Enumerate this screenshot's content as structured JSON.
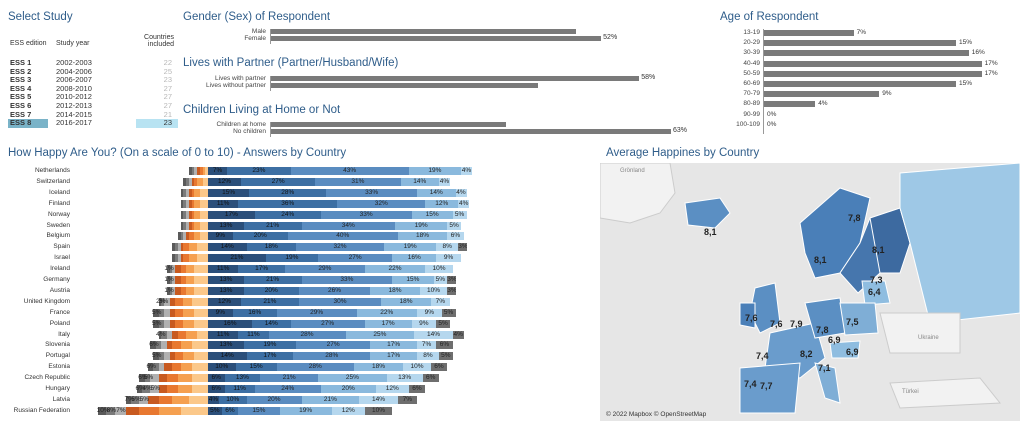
{
  "select_study": {
    "title": "Select Study",
    "headers": {
      "edition": "ESS edition",
      "year": "Study year",
      "countries": "Countries included"
    },
    "rows": [
      {
        "edition": "ESS 1",
        "year": "2002-2003",
        "countries": "22",
        "selected": false
      },
      {
        "edition": "ESS 2",
        "year": "2004-2006",
        "countries": "25",
        "selected": false
      },
      {
        "edition": "ESS 3",
        "year": "2006-2007",
        "countries": "23",
        "selected": false
      },
      {
        "edition": "ESS 4",
        "year": "2008-2010",
        "countries": "27",
        "selected": false
      },
      {
        "edition": "ESS 5",
        "year": "2010-2012",
        "countries": "27",
        "selected": false
      },
      {
        "edition": "ESS 6",
        "year": "2012-2013",
        "countries": "27",
        "selected": false
      },
      {
        "edition": "ESS 7",
        "year": "2014-2015",
        "countries": "21",
        "selected": false
      },
      {
        "edition": "ESS 8",
        "year": "2016-2017",
        "countries": "23",
        "selected": true
      }
    ]
  },
  "gender": {
    "title": "Gender (Sex) of Respondent",
    "rows": [
      {
        "label": "Male",
        "value": 48,
        "shown": ""
      },
      {
        "label": "Female",
        "value": 52,
        "shown": "52%"
      }
    ]
  },
  "partner": {
    "title": "Lives with Partner (Partner/Husband/Wife)",
    "rows": [
      {
        "label": "Lives with partner",
        "value": 58,
        "shown": "58%"
      },
      {
        "label": "Lives without partner",
        "value": 42,
        "shown": ""
      }
    ]
  },
  "children": {
    "title": "Children Living at Home or Not",
    "rows": [
      {
        "label": "Children at home",
        "value": 37,
        "shown": ""
      },
      {
        "label": "No children",
        "value": 63,
        "shown": "63%"
      }
    ]
  },
  "age": {
    "title": "Age of Respondent",
    "rows": [
      {
        "label": "13-19",
        "value": 7,
        "shown": "7%"
      },
      {
        "label": "20-29",
        "value": 15,
        "shown": "15%"
      },
      {
        "label": "30-39",
        "value": 16,
        "shown": "16%"
      },
      {
        "label": "40-49",
        "value": 17,
        "shown": "17%"
      },
      {
        "label": "50-59",
        "value": 17,
        "shown": "17%"
      },
      {
        "label": "60-69",
        "value": 15,
        "shown": "15%"
      },
      {
        "label": "70-79",
        "value": 9,
        "shown": "9%"
      },
      {
        "label": "80-89",
        "value": 4,
        "shown": "4%"
      },
      {
        "label": "90-99",
        "value": 0,
        "shown": "0%"
      },
      {
        "label": "100-109",
        "value": 0,
        "shown": "0%"
      }
    ]
  },
  "chart_data": {
    "type": "bar",
    "title": "How Happy Are You? (On a scale of 0 to 10) - Answers by Country",
    "colors": {
      "neg": [
        "#5a5a5a",
        "#808080",
        "#a8a8a8",
        "#c54a1e",
        "#e06020",
        "#f0883a",
        "#f7a960",
        "#fbc58a"
      ],
      "mid": "#e8a060",
      "pos": [
        "#2b4f7a",
        "#3d6fa3",
        "#5a8cc0",
        "#8ab9dd",
        "#b5d7ee",
        "#7a7a7a"
      ]
    },
    "rows": [
      {
        "country": "Netherlands",
        "left": [
          1,
          1,
          1,
          1,
          1,
          1,
          1
        ],
        "right": [
          7,
          23,
          43,
          19,
          4
        ],
        "labels": [
          "7%",
          "23%",
          "43%",
          "19%",
          "4%"
        ]
      },
      {
        "country": "Switzerland",
        "left": [
          1,
          1,
          1,
          1,
          1,
          2,
          2
        ],
        "right": [
          12,
          27,
          31,
          14,
          4
        ],
        "labels": [
          "12%",
          "27%",
          "31%",
          "14%",
          "4%"
        ]
      },
      {
        "country": "Iceland",
        "left": [
          1,
          1,
          1,
          1,
          1,
          2,
          3
        ],
        "right": [
          15,
          28,
          33,
          14,
          4
        ],
        "labels": [
          "15%",
          "28%",
          "33%",
          "14%",
          "4%"
        ]
      },
      {
        "country": "Finland",
        "left": [
          1,
          1,
          1,
          1,
          1,
          2,
          3
        ],
        "right": [
          11,
          36,
          32,
          12,
          4
        ],
        "labels": [
          "11%",
          "36%",
          "32%",
          "12%",
          "4%"
        ]
      },
      {
        "country": "Norway",
        "left": [
          1,
          1,
          1,
          1,
          1,
          2,
          3
        ],
        "right": [
          17,
          24,
          33,
          15,
          5
        ],
        "labels": [
          "17%",
          "24%",
          "33%",
          "15%",
          "5%"
        ]
      },
      {
        "country": "Sweden",
        "left": [
          1,
          1,
          1,
          1,
          1,
          2,
          3
        ],
        "right": [
          13,
          21,
          34,
          19,
          5
        ],
        "labels": [
          "13%",
          "21%",
          "34%",
          "19%",
          "5%"
        ]
      },
      {
        "country": "Belgium",
        "left": [
          1,
          1,
          1,
          1,
          2,
          2,
          3
        ],
        "right": [
          9,
          20,
          40,
          18,
          6
        ],
        "labels": [
          "9%",
          "20%",
          "40%",
          "18%",
          "6%"
        ]
      },
      {
        "country": "Spain",
        "left": [
          1,
          1,
          1,
          1,
          2,
          3,
          4
        ],
        "right": [
          14,
          18,
          32,
          19,
          8,
          3
        ],
        "labels": [
          "14%",
          "18%",
          "32%",
          "19%",
          "8%",
          "3%"
        ]
      },
      {
        "country": "Israel",
        "left": [
          1,
          1,
          1,
          1,
          2,
          3,
          4
        ],
        "right": [
          21,
          19,
          27,
          16,
          9
        ],
        "labels": [
          "21%",
          "19%",
          "27%",
          "16%",
          "9%"
        ]
      },
      {
        "country": "Ireland",
        "left": [
          1,
          1,
          1,
          2,
          2,
          3,
          5
        ],
        "right": [
          11,
          17,
          29,
          22,
          10
        ],
        "labels": [
          "11%",
          "17%",
          "29%",
          "22%",
          "10%"
        ]
      },
      {
        "country": "Germany",
        "left": [
          1,
          1,
          1,
          2,
          2,
          3,
          5
        ],
        "right": [
          13,
          21,
          33,
          15,
          5,
          3
        ],
        "labels": [
          "13%",
          "21%",
          "33%",
          "15%",
          "5%",
          "3%"
        ]
      },
      {
        "country": "Austria",
        "left": [
          1,
          1,
          1,
          2,
          2,
          3,
          5
        ],
        "right": [
          13,
          20,
          26,
          18,
          10,
          3
        ],
        "labels": [
          "13%",
          "20%",
          "26%",
          "18%",
          "10%",
          "3%"
        ]
      },
      {
        "country": "United Kingdom",
        "left": [
          1,
          1,
          2,
          2,
          3,
          3,
          6
        ],
        "right": [
          12,
          21,
          30,
          18,
          7
        ],
        "labels": [
          "12%",
          "21%",
          "30%",
          "18%",
          "7%"
        ]
      },
      {
        "country": "France",
        "left": [
          2,
          2,
          2,
          2,
          3,
          4,
          5
        ],
        "right": [
          9,
          16,
          29,
          22,
          9,
          5
        ],
        "labels": [
          "9%",
          "16%",
          "29%",
          "22%",
          "9%",
          "5%"
        ]
      },
      {
        "country": "Poland",
        "left": [
          2,
          2,
          2,
          2,
          3,
          4,
          5
        ],
        "right": [
          16,
          14,
          27,
          17,
          9,
          5
        ],
        "labels": [
          "16%",
          "14%",
          "27%",
          "17%",
          "9%",
          "5%"
        ]
      },
      {
        "country": "Italy",
        "left": [
          1,
          2,
          2,
          2,
          3,
          4,
          4
        ],
        "right": [
          11,
          11,
          28,
          25,
          14,
          4
        ],
        "labels": [
          "11%",
          "11%",
          "28%",
          "25%",
          "14%",
          "4%"
        ]
      },
      {
        "country": "Slovenia",
        "left": [
          2,
          2,
          2,
          2,
          3,
          4,
          6
        ],
        "right": [
          13,
          19,
          27,
          17,
          7,
          6
        ],
        "labels": [
          "13%",
          "19%",
          "27%",
          "17%",
          "7%",
          "6%"
        ]
      },
      {
        "country": "Portugal",
        "left": [
          2,
          2,
          2,
          2,
          3,
          4,
          5
        ],
        "right": [
          14,
          17,
          28,
          17,
          8,
          5
        ],
        "labels": [
          "14%",
          "17%",
          "28%",
          "17%",
          "8%",
          "5%"
        ]
      },
      {
        "country": "Estonia",
        "left": [
          2,
          2,
          2,
          3,
          3,
          4,
          6
        ],
        "right": [
          10,
          15,
          28,
          18,
          10,
          6
        ],
        "labels": [
          "10%",
          "15%",
          "28%",
          "18%",
          "10%",
          "6%"
        ]
      },
      {
        "country": "Czech Republic",
        "left": [
          2,
          2,
          3,
          3,
          4,
          5,
          6
        ],
        "right": [
          6,
          13,
          21,
          25,
          13,
          6
        ],
        "labels": [
          "6%",
          "13%",
          "21%",
          "25%",
          "13%",
          "6%"
        ]
      },
      {
        "country": "Hungary",
        "left": [
          2,
          3,
          3,
          3,
          4,
          5,
          6
        ],
        "right": [
          6,
          11,
          24,
          20,
          12,
          6
        ],
        "labels": [
          "6%",
          "11%",
          "24%",
          "20%",
          "12%",
          "6%"
        ]
      },
      {
        "country": "Latvia",
        "left": [
          2,
          3,
          3,
          4,
          5,
          6,
          7
        ],
        "right": [
          4,
          10,
          20,
          21,
          14,
          7
        ],
        "labels": [
          "4%",
          "10%",
          "20%",
          "21%",
          "14%",
          "7%"
        ]
      },
      {
        "country": "Russian Federation",
        "left": [
          3,
          3,
          4,
          5,
          7,
          8,
          10
        ],
        "right": [
          5,
          6,
          15,
          19,
          12,
          10
        ],
        "labels": [
          "5%",
          "6%",
          "15%",
          "19%",
          "12%",
          "10%"
        ]
      }
    ],
    "left_labels": {
      "Ireland": [
        "1%"
      ],
      "Germany": [
        "1%"
      ],
      "Austria": [
        "1%"
      ],
      "United Kingdom": [
        "2%",
        "3%"
      ],
      "France": [
        "5%"
      ],
      "Poland": [
        "5%"
      ],
      "Italy": [
        "4%"
      ],
      "Slovenia": [
        "6%"
      ],
      "Portugal": [
        "5%"
      ],
      "Estonia": [
        "6%"
      ],
      "Czech Republic": [
        "6%",
        "5%"
      ],
      "Hungary": [
        "6%",
        "4%",
        "5%"
      ],
      "Latvia": [
        "7%",
        "6%",
        "5%"
      ],
      "Russian Federation": [
        "10%",
        "8%",
        "7%"
      ]
    }
  },
  "map": {
    "title": "Average Happines by Country",
    "credit": "© 2022 Mapbox © OpenStreetMap",
    "places": {
      "greenland": "Grönland",
      "ukraine": "Ukraine",
      "turkey": "Türkei"
    },
    "labels": [
      "8,1",
      "7,8",
      "8,1",
      "8,1",
      "7,3",
      "6,4",
      "7,6",
      "7,6",
      "7,9",
      "7,8",
      "7,5",
      "6,9",
      "6,9",
      "7,4",
      "8,2",
      "7,1",
      "7,4",
      "7,7"
    ]
  }
}
